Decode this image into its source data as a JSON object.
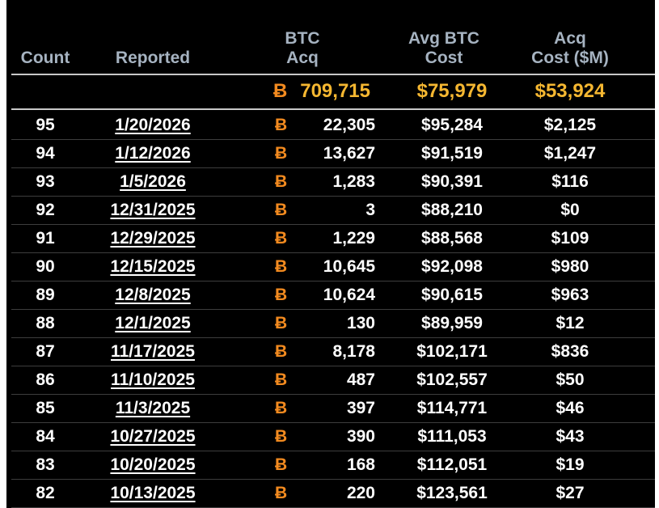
{
  "headers": {
    "count": "Count",
    "reported": "Reported",
    "btc_acq_line1": "BTC",
    "btc_acq_line2": "Acq",
    "avg_cost_line1": "Avg BTC",
    "avg_cost_line2": "Cost",
    "acq_cost_line1": "Acq",
    "acq_cost_line2": "Cost ($M)"
  },
  "summary": {
    "btc_symbol": "Ƀ",
    "btc_total": "709,715",
    "avg_cost": "$75,979",
    "acq_cost": "$53,924"
  },
  "btc_symbol": "Ƀ",
  "colors": {
    "accent_gold": "#f5b731",
    "btc_orange": "#f28a1f",
    "header_gray": "#a6b3c1"
  },
  "rows": [
    {
      "count": "95",
      "date": "1/20/2026",
      "btc": "22,305",
      "avg": "$95,284",
      "cost": "$2,125"
    },
    {
      "count": "94",
      "date": "1/12/2026",
      "btc": "13,627",
      "avg": "$91,519",
      "cost": "$1,247"
    },
    {
      "count": "93",
      "date": "1/5/2026",
      "btc": "1,283",
      "avg": "$90,391",
      "cost": "$116"
    },
    {
      "count": "92",
      "date": "12/31/2025",
      "btc": "3",
      "avg": "$88,210",
      "cost": "$0"
    },
    {
      "count": "91",
      "date": "12/29/2025",
      "btc": "1,229",
      "avg": "$88,568",
      "cost": "$109"
    },
    {
      "count": "90",
      "date": "12/15/2025",
      "btc": "10,645",
      "avg": "$92,098",
      "cost": "$980"
    },
    {
      "count": "89",
      "date": "12/8/2025",
      "btc": "10,624",
      "avg": "$90,615",
      "cost": "$963"
    },
    {
      "count": "88",
      "date": "12/1/2025",
      "btc": "130",
      "avg": "$89,959",
      "cost": "$12"
    },
    {
      "count": "87",
      "date": "11/17/2025",
      "btc": "8,178",
      "avg": "$102,171",
      "cost": "$836"
    },
    {
      "count": "86",
      "date": "11/10/2025",
      "btc": "487",
      "avg": "$102,557",
      "cost": "$50"
    },
    {
      "count": "85",
      "date": "11/3/2025",
      "btc": "397",
      "avg": "$114,771",
      "cost": "$46"
    },
    {
      "count": "84",
      "date": "10/27/2025",
      "btc": "390",
      "avg": "$111,053",
      "cost": "$43"
    },
    {
      "count": "83",
      "date": "10/20/2025",
      "btc": "168",
      "avg": "$112,051",
      "cost": "$19"
    },
    {
      "count": "82",
      "date": "10/13/2025",
      "btc": "220",
      "avg": "$123,561",
      "cost": "$27"
    }
  ]
}
